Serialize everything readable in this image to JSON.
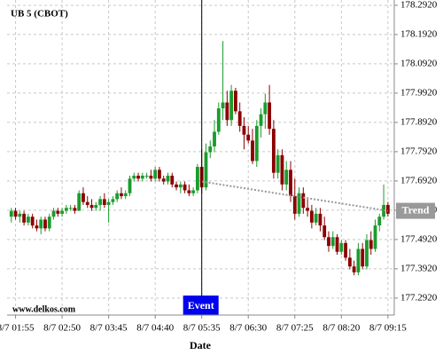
{
  "chart_data": {
    "type": "candlestick",
    "title": "UB 5 (CBOT)",
    "watermark": "www.delkos.com",
    "x_label": "Date",
    "up_color": "#1a9c2c",
    "down_color": "#8b0000",
    "grid": true,
    "xlim": [
      -1,
      90.5
    ],
    "xticks": [
      {
        "value": 1,
        "label": "8/7 01:55"
      },
      {
        "value": 12,
        "label": "8/7 02:50"
      },
      {
        "value": 23,
        "label": "8/7 03:45"
      },
      {
        "value": 34,
        "label": "8/7 04:40"
      },
      {
        "value": 45,
        "label": "8/7 05:35"
      },
      {
        "value": 56,
        "label": "8/7 06:30"
      },
      {
        "value": 67,
        "label": "8/7 07:25"
      },
      {
        "value": 78,
        "label": "8/7 08:20"
      },
      {
        "value": 89,
        "label": "8/7 09:15"
      }
    ],
    "ylim": [
      177.234,
      178.31
    ],
    "yticks": [
      {
        "value": 177.292,
        "label": "177.2920"
      },
      {
        "value": 177.392,
        "label": "177.3920"
      },
      {
        "value": 177.492,
        "label": "177.4920"
      },
      {
        "value": 177.592,
        "label": "177.5920"
      },
      {
        "value": 177.692,
        "label": "177.6920"
      },
      {
        "value": 177.792,
        "label": "177.7920"
      },
      {
        "value": 177.892,
        "label": "177.8920"
      },
      {
        "value": 177.992,
        "label": "177.9920"
      },
      {
        "value": 178.092,
        "label": "178.0920"
      },
      {
        "value": 178.192,
        "label": "178.1920"
      },
      {
        "value": 178.292,
        "label": "178.2920"
      }
    ],
    "event": {
      "label": "Event",
      "x": 45,
      "color": "#0000ee"
    },
    "trend": {
      "label": "Trend",
      "x": [
        45,
        89
      ],
      "values": [
        177.69,
        177.59
      ],
      "color": "#999999"
    },
    "candles": [
      [
        177.57,
        177.6,
        177.55,
        177.59
      ],
      [
        177.59,
        177.6,
        177.56,
        177.57
      ],
      [
        177.57,
        177.59,
        177.55,
        177.58
      ],
      [
        177.58,
        177.59,
        177.54,
        177.55
      ],
      [
        177.55,
        177.58,
        177.54,
        177.57
      ],
      [
        177.57,
        177.58,
        177.53,
        177.54
      ],
      [
        177.54,
        177.56,
        177.52,
        177.53
      ],
      [
        177.53,
        177.57,
        177.51,
        177.56
      ],
      [
        177.56,
        177.57,
        177.52,
        177.53
      ],
      [
        177.53,
        177.58,
        177.52,
        177.57
      ],
      [
        177.57,
        177.6,
        177.56,
        177.59
      ],
      [
        177.59,
        177.6,
        177.57,
        177.58
      ],
      [
        177.58,
        177.6,
        177.57,
        177.59
      ],
      [
        177.59,
        177.61,
        177.58,
        177.6
      ],
      [
        177.6,
        177.61,
        177.59,
        177.6
      ],
      [
        177.6,
        177.61,
        177.58,
        177.59
      ],
      [
        177.59,
        177.66,
        177.59,
        177.65
      ],
      [
        177.65,
        177.67,
        177.61,
        177.62
      ],
      [
        177.62,
        177.64,
        177.6,
        177.61
      ],
      [
        177.61,
        177.63,
        177.59,
        177.6
      ],
      [
        177.6,
        177.62,
        177.59,
        177.61
      ],
      [
        177.61,
        177.64,
        177.59,
        177.63
      ],
      [
        177.63,
        177.65,
        177.6,
        177.61
      ],
      [
        177.61,
        177.63,
        177.55,
        177.62
      ],
      [
        177.62,
        177.64,
        177.61,
        177.63
      ],
      [
        177.63,
        177.66,
        177.62,
        177.65
      ],
      [
        177.65,
        177.67,
        177.63,
        177.64
      ],
      [
        177.64,
        177.66,
        177.63,
        177.65
      ],
      [
        177.65,
        177.71,
        177.64,
        177.7
      ],
      [
        177.7,
        177.72,
        177.69,
        177.71
      ],
      [
        177.71,
        177.72,
        177.69,
        177.7
      ],
      [
        177.7,
        177.72,
        177.69,
        177.71
      ],
      [
        177.71,
        177.72,
        177.7,
        177.71
      ],
      [
        177.71,
        177.73,
        177.69,
        177.7
      ],
      [
        177.7,
        177.74,
        177.69,
        177.73
      ],
      [
        177.73,
        177.74,
        177.69,
        177.7
      ],
      [
        177.7,
        177.71,
        177.68,
        177.69
      ],
      [
        177.69,
        177.72,
        177.68,
        177.71
      ],
      [
        177.71,
        177.72,
        177.67,
        177.68
      ],
      [
        177.68,
        177.69,
        177.66,
        177.67
      ],
      [
        177.67,
        177.69,
        177.65,
        177.68
      ],
      [
        177.68,
        177.69,
        177.65,
        177.66
      ],
      [
        177.66,
        177.68,
        177.64,
        177.65
      ],
      [
        177.65,
        177.67,
        177.64,
        177.66
      ],
      [
        177.66,
        177.75,
        177.65,
        177.74
      ],
      [
        177.74,
        177.8,
        177.65,
        177.67
      ],
      [
        177.67,
        177.82,
        177.66,
        177.79
      ],
      [
        177.79,
        177.83,
        177.77,
        177.81
      ],
      [
        177.81,
        177.9,
        177.79,
        177.86
      ],
      [
        177.86,
        177.96,
        177.85,
        177.94
      ],
      [
        177.94,
        178.17,
        177.9,
        177.96
      ],
      [
        177.96,
        178.0,
        177.88,
        177.9
      ],
      [
        177.9,
        178.02,
        177.88,
        178.0
      ],
      [
        178.0,
        178.01,
        177.92,
        177.93
      ],
      [
        177.93,
        177.96,
        177.86,
        177.88
      ],
      [
        177.88,
        177.91,
        177.8,
        177.85
      ],
      [
        177.85,
        177.88,
        177.82,
        177.83
      ],
      [
        177.83,
        177.87,
        177.75,
        177.76
      ],
      [
        177.76,
        177.9,
        177.74,
        177.88
      ],
      [
        177.88,
        177.94,
        177.84,
        177.92
      ],
      [
        177.92,
        177.99,
        177.87,
        177.96
      ],
      [
        177.96,
        178.02,
        177.85,
        177.87
      ],
      [
        177.87,
        177.9,
        177.7,
        177.72
      ],
      [
        177.72,
        177.8,
        177.7,
        177.78
      ],
      [
        177.78,
        177.8,
        177.66,
        177.68
      ],
      [
        177.68,
        177.76,
        177.66,
        177.73
      ],
      [
        177.73,
        177.76,
        177.62,
        177.64
      ],
      [
        177.64,
        177.7,
        177.56,
        177.58
      ],
      [
        177.58,
        177.67,
        177.57,
        177.65
      ],
      [
        177.65,
        177.67,
        177.58,
        177.6
      ],
      [
        177.6,
        177.63,
        177.57,
        177.59
      ],
      [
        177.59,
        177.61,
        177.53,
        177.55
      ],
      [
        177.55,
        177.6,
        177.54,
        177.58
      ],
      [
        177.58,
        177.6,
        177.52,
        177.54
      ],
      [
        177.54,
        177.57,
        177.49,
        177.5
      ],
      [
        177.5,
        177.52,
        177.45,
        177.47
      ],
      [
        177.47,
        177.52,
        177.46,
        177.5
      ],
      [
        177.5,
        177.51,
        177.44,
        177.45
      ],
      [
        177.45,
        177.49,
        177.44,
        177.48
      ],
      [
        177.48,
        177.49,
        177.42,
        177.43
      ],
      [
        177.43,
        177.46,
        177.39,
        177.4
      ],
      [
        177.4,
        177.42,
        177.37,
        177.38
      ],
      [
        177.38,
        177.48,
        177.37,
        177.46
      ],
      [
        177.46,
        177.48,
        177.39,
        177.4
      ],
      [
        177.4,
        177.51,
        177.39,
        177.49
      ],
      [
        177.49,
        177.52,
        177.44,
        177.46
      ],
      [
        177.46,
        177.56,
        177.45,
        177.54
      ],
      [
        177.54,
        177.58,
        177.52,
        177.57
      ],
      [
        177.57,
        177.68,
        177.56,
        177.61
      ],
      [
        177.61,
        177.62,
        177.57,
        177.58
      ]
    ]
  }
}
